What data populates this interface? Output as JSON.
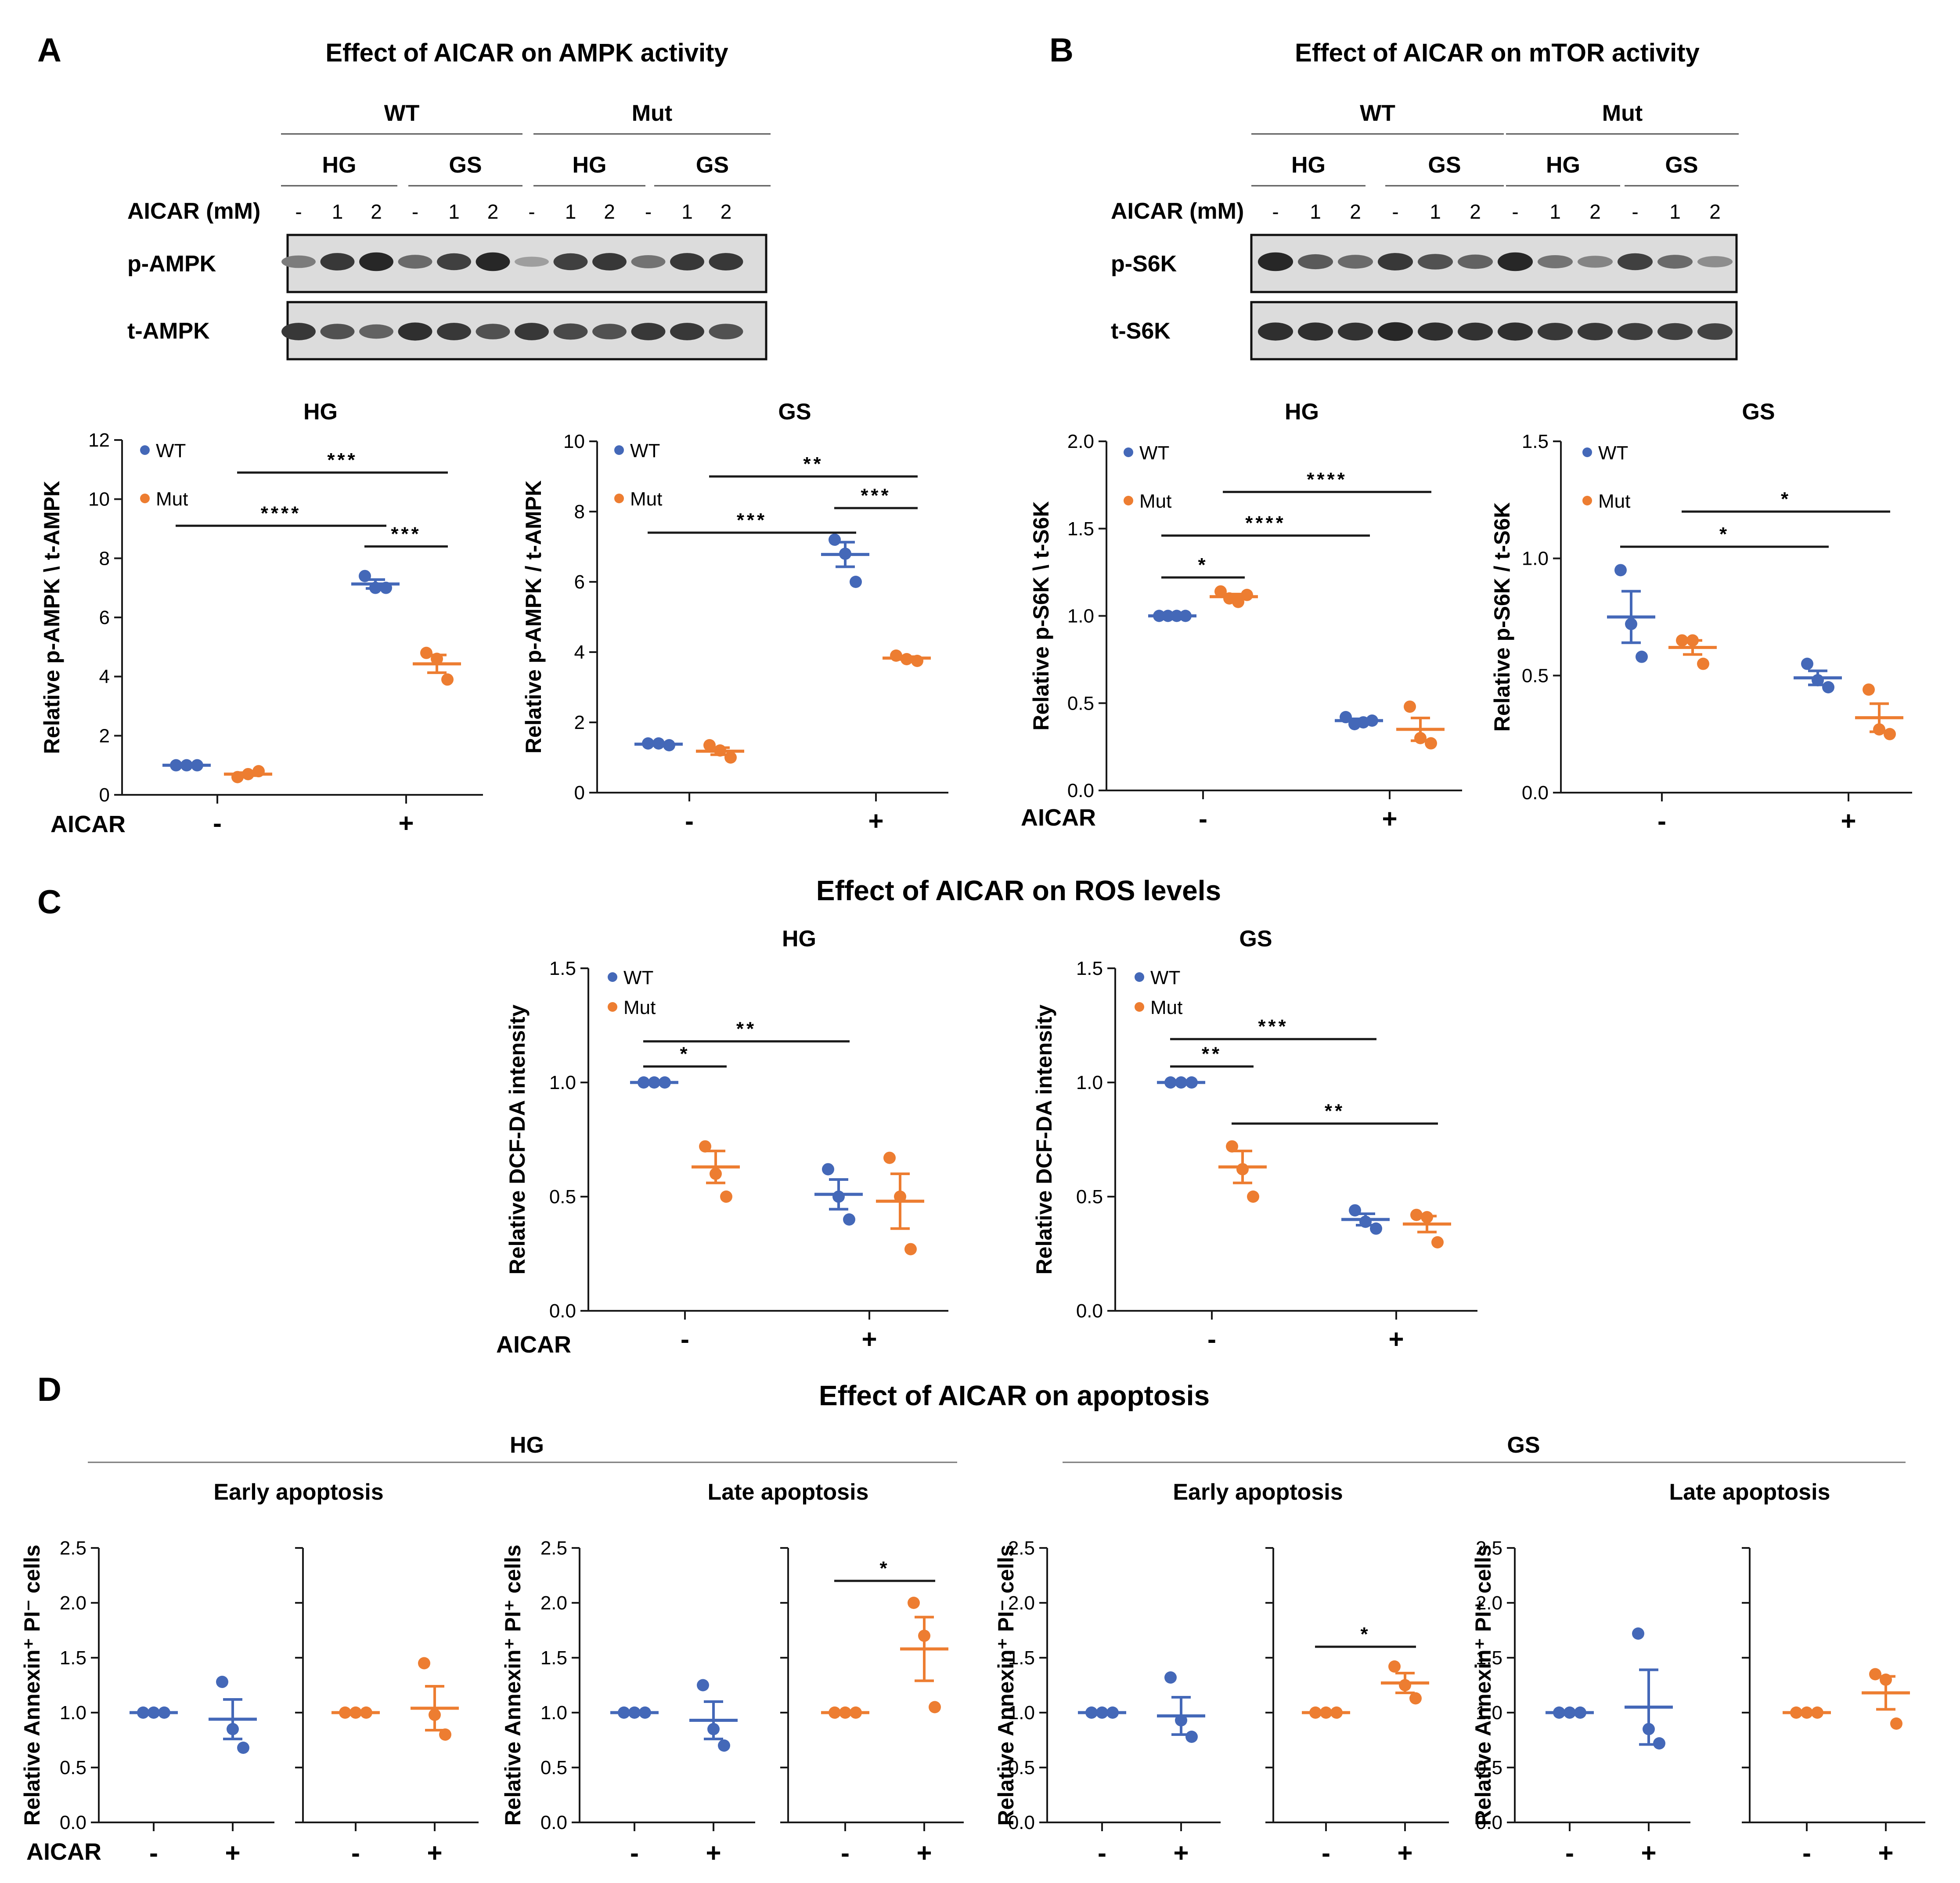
{
  "colors": {
    "wt": "#4468b8",
    "mut": "#ed7d31",
    "axis": "#1a1a1a",
    "text": "#1a1a1a",
    "band": "#2a2a2a"
  },
  "panels": {
    "a": {
      "letter": "A",
      "title": "Effect of AICAR on AMPK activity",
      "group1": "WT",
      "group2": "Mut",
      "sub": [
        "HG",
        "GS",
        "HG",
        "GS"
      ],
      "dose_label": "AICAR (mM)",
      "doses": [
        "-",
        "1",
        "2",
        "-",
        "1",
        "2",
        "-",
        "1",
        "2",
        "-",
        "1",
        "2"
      ],
      "band1": "p-AMPK",
      "band2": "t-AMPK"
    },
    "b": {
      "letter": "B",
      "title": "Effect of AICAR on mTOR activity",
      "group1": "WT",
      "group2": "Mut",
      "sub": [
        "HG",
        "GS",
        "HG",
        "GS"
      ],
      "dose_label": "AICAR (mM)",
      "doses": [
        "-",
        "1",
        "2",
        "-",
        "1",
        "2",
        "-",
        "1",
        "2",
        "-",
        "1",
        "2"
      ],
      "band1": "p-S6K",
      "band2": "t-S6K"
    },
    "c": {
      "letter": "C",
      "title": "Effect of AICAR on ROS levels"
    },
    "d": {
      "letter": "D",
      "title": "Effect of AICAR on apoptosis",
      "hg": "HG",
      "gs": "GS",
      "hg_early": "Early apoptosis",
      "hg_late": "Late apoptosis",
      "gs_early": "Early apoptosis",
      "gs_late": "Late apoptosis"
    }
  },
  "aicar_label": "AICAR",
  "chart_data": [
    {
      "id": "a_hg",
      "type": "scatter",
      "title": "HG",
      "ylabel": "Relative p-AMPK \\ t-AMPK",
      "ylim": [
        0,
        12
      ],
      "yticks": [
        "0",
        "2",
        "4",
        "6",
        "8",
        "10",
        "12"
      ],
      "categories": [
        "-",
        "+"
      ],
      "legend": [
        "WT",
        "Mut"
      ],
      "series": [
        {
          "name": "WT",
          "x": 0,
          "points": [
            1.0,
            1.0,
            1.0
          ],
          "mean": 1.0,
          "sem": 0.02
        },
        {
          "name": "Mut",
          "x": 0,
          "points": [
            0.6,
            0.7,
            0.8
          ],
          "mean": 0.7,
          "sem": 0.05
        },
        {
          "name": "WT",
          "x": 1,
          "points": [
            7.4,
            7.0,
            7.0
          ],
          "mean": 7.13,
          "sem": 0.15
        },
        {
          "name": "Mut",
          "x": 1,
          "points": [
            4.8,
            4.6,
            3.9
          ],
          "mean": 4.43,
          "sem": 0.3
        }
      ],
      "sig": [
        {
          "text": "****",
          "from": [
            0,
            "WT"
          ],
          "to": [
            1,
            "WT"
          ],
          "y": 9.1
        },
        {
          "text": "***",
          "from": [
            1,
            "WT"
          ],
          "to": [
            1,
            "Mut"
          ],
          "y": 8.4
        },
        {
          "text": "***",
          "from": [
            0,
            "Mut"
          ],
          "to": [
            1,
            "Mut"
          ],
          "y": 10.9
        }
      ]
    },
    {
      "id": "a_gs",
      "type": "scatter",
      "title": "GS",
      "ylabel": "Relative p-AMPK / t-AMPK",
      "ylim": [
        0,
        10
      ],
      "yticks": [
        "0",
        "2",
        "4",
        "6",
        "8",
        "10"
      ],
      "categories": [
        "-",
        "+"
      ],
      "legend": [
        "WT",
        "Mut"
      ],
      "series": [
        {
          "name": "WT",
          "x": 0,
          "points": [
            1.4,
            1.4,
            1.35
          ],
          "mean": 1.38,
          "sem": 0.02
        },
        {
          "name": "Mut",
          "x": 0,
          "points": [
            1.35,
            1.2,
            1.0
          ],
          "mean": 1.18,
          "sem": 0.1
        },
        {
          "name": "WT",
          "x": 1,
          "points": [
            7.2,
            6.8,
            6.0
          ],
          "mean": 6.78,
          "sem": 0.35
        },
        {
          "name": "Mut",
          "x": 1,
          "points": [
            3.9,
            3.8,
            3.75
          ],
          "mean": 3.83,
          "sem": 0.04
        }
      ],
      "sig": [
        {
          "text": "***",
          "from": [
            0,
            "WT"
          ],
          "to": [
            1,
            "WT"
          ],
          "y": 7.4
        },
        {
          "text": "***",
          "from": [
            1,
            "WT"
          ],
          "to": [
            1,
            "Mut"
          ],
          "y": 8.1
        },
        {
          "text": "**",
          "from": [
            0,
            "Mut"
          ],
          "to": [
            1,
            "Mut"
          ],
          "y": 9.0
        }
      ]
    },
    {
      "id": "b_hg",
      "type": "scatter",
      "title": "HG",
      "ylabel": "Relative p-S6K \\ t-S6K",
      "ylim": [
        0,
        2.0
      ],
      "yticks": [
        "0.0",
        "0.5",
        "1.0",
        "1.5",
        "2.0"
      ],
      "categories": [
        "-",
        "+"
      ],
      "legend": [
        "WT",
        "Mut"
      ],
      "series": [
        {
          "name": "WT",
          "x": 0,
          "points": [
            1.0,
            1.0,
            1.0,
            1.0
          ],
          "mean": 1.0,
          "sem": 0.005
        },
        {
          "name": "Mut",
          "x": 0,
          "points": [
            1.14,
            1.1,
            1.08,
            1.12
          ],
          "mean": 1.11,
          "sem": 0.015
        },
        {
          "name": "WT",
          "x": 1,
          "points": [
            0.42,
            0.38,
            0.39,
            0.4
          ],
          "mean": 0.4,
          "sem": 0.01
        },
        {
          "name": "Mut",
          "x": 1,
          "points": [
            0.48,
            0.3,
            0.27
          ],
          "mean": 0.35,
          "sem": 0.065
        }
      ],
      "sig": [
        {
          "text": "*",
          "from": [
            0,
            "WT"
          ],
          "to": [
            0,
            "Mut"
          ],
          "y": 1.22
        },
        {
          "text": "****",
          "from": [
            0,
            "WT"
          ],
          "to": [
            1,
            "WT"
          ],
          "y": 1.46
        },
        {
          "text": "****",
          "from": [
            0,
            "Mut"
          ],
          "to": [
            1,
            "Mut"
          ],
          "y": 1.71
        }
      ]
    },
    {
      "id": "b_gs",
      "type": "scatter",
      "title": "GS",
      "ylabel": "Relative p-S6K / t-S6K",
      "ylim": [
        0,
        1.5
      ],
      "yticks": [
        "0.0",
        "0.5",
        "1.0",
        "1.5"
      ],
      "categories": [
        "-",
        "+"
      ],
      "legend": [
        "WT",
        "Mut"
      ],
      "series": [
        {
          "name": "WT",
          "x": 0,
          "points": [
            0.95,
            0.72,
            0.58
          ],
          "mean": 0.75,
          "sem": 0.11
        },
        {
          "name": "Mut",
          "x": 0,
          "points": [
            0.65,
            0.65,
            0.55
          ],
          "mean": 0.62,
          "sem": 0.03
        },
        {
          "name": "WT",
          "x": 1,
          "points": [
            0.55,
            0.48,
            0.45
          ],
          "mean": 0.49,
          "sem": 0.03
        },
        {
          "name": "Mut",
          "x": 1,
          "points": [
            0.44,
            0.27,
            0.25
          ],
          "mean": 0.32,
          "sem": 0.06
        }
      ],
      "sig": [
        {
          "text": "*",
          "from": [
            0,
            "WT"
          ],
          "to": [
            1,
            "WT"
          ],
          "y": 1.05
        },
        {
          "text": "*",
          "from": [
            0,
            "Mut"
          ],
          "to": [
            1,
            "Mut"
          ],
          "y": 1.2
        }
      ]
    },
    {
      "id": "c_hg",
      "type": "scatter",
      "title": "HG",
      "ylabel": "Relative DCF-DA intensity",
      "ylim": [
        0,
        1.5
      ],
      "yticks": [
        "0.0",
        "0.5",
        "1.0",
        "1.5"
      ],
      "categories": [
        "-",
        "+"
      ],
      "legend": [
        "WT",
        "Mut"
      ],
      "series": [
        {
          "name": "WT",
          "x": 0,
          "points": [
            1.0,
            1.0,
            1.0
          ],
          "mean": 1.0,
          "sem": 0.003
        },
        {
          "name": "Mut",
          "x": 0,
          "points": [
            0.72,
            0.6,
            0.5
          ],
          "mean": 0.63,
          "sem": 0.07
        },
        {
          "name": "WT",
          "x": 1,
          "points": [
            0.62,
            0.5,
            0.4
          ],
          "mean": 0.51,
          "sem": 0.065
        },
        {
          "name": "Mut",
          "x": 1,
          "points": [
            0.67,
            0.5,
            0.27
          ],
          "mean": 0.48,
          "sem": 0.12
        }
      ],
      "sig": [
        {
          "text": "*",
          "from": [
            0,
            "WT"
          ],
          "to": [
            0,
            "Mut"
          ],
          "y": 1.07
        },
        {
          "text": "**",
          "from": [
            0,
            "WT"
          ],
          "to": [
            1,
            "WT"
          ],
          "y": 1.18
        }
      ]
    },
    {
      "id": "c_gs",
      "type": "scatter",
      "title": "GS",
      "ylabel": "Relative DCF-DA intensity",
      "ylim": [
        0,
        1.5
      ],
      "yticks": [
        "0.0",
        "0.5",
        "1.0",
        "1.5"
      ],
      "categories": [
        "-",
        "+"
      ],
      "legend": [
        "WT",
        "Mut"
      ],
      "series": [
        {
          "name": "WT",
          "x": 0,
          "points": [
            1.0,
            1.0,
            1.0
          ],
          "mean": 1.0,
          "sem": 0.003
        },
        {
          "name": "Mut",
          "x": 0,
          "points": [
            0.72,
            0.62,
            0.5
          ],
          "mean": 0.63,
          "sem": 0.07
        },
        {
          "name": "WT",
          "x": 1,
          "points": [
            0.44,
            0.39,
            0.36
          ],
          "mean": 0.4,
          "sem": 0.025
        },
        {
          "name": "Mut",
          "x": 1,
          "points": [
            0.42,
            0.41,
            0.3
          ],
          "mean": 0.38,
          "sem": 0.035
        }
      ],
      "sig": [
        {
          "text": "**",
          "from": [
            0,
            "WT"
          ],
          "to": [
            0,
            "Mut"
          ],
          "y": 1.07
        },
        {
          "text": "***",
          "from": [
            0,
            "WT"
          ],
          "to": [
            1,
            "WT"
          ],
          "y": 1.19
        },
        {
          "text": "**",
          "from": [
            0,
            "Mut"
          ],
          "to": [
            1,
            "Mut"
          ],
          "y": 0.82
        }
      ]
    },
    {
      "id": "d_hg_early",
      "type": "scatter",
      "title": "Early apoptosis",
      "ylabel": "Relative Annexin⁺ PI⁻ cells",
      "ylim": [
        0,
        2.5
      ],
      "yticks": [
        "0.0",
        "0.5",
        "1.0",
        "1.5",
        "2.0",
        "2.5"
      ],
      "categories": [
        "-",
        "+",
        "-",
        "+"
      ],
      "series": [
        {
          "name": "WT",
          "x": 0,
          "points": [
            1.0,
            1.0,
            1.0
          ],
          "mean": 1.0,
          "sem": 0.003
        },
        {
          "name": "WT",
          "x": 1,
          "points": [
            1.28,
            0.85,
            0.68
          ],
          "mean": 0.94,
          "sem": 0.18
        },
        {
          "name": "Mut",
          "x": 2,
          "points": [
            1.0,
            1.0,
            1.0
          ],
          "mean": 1.0,
          "sem": 0.003
        },
        {
          "name": "Mut",
          "x": 3,
          "points": [
            1.45,
            0.98,
            0.8
          ],
          "mean": 1.04,
          "sem": 0.2
        }
      ],
      "sig": []
    },
    {
      "id": "d_hg_late",
      "type": "scatter",
      "title": "Late apoptosis",
      "ylabel": "Relative Annexin⁺ PI⁺ cells",
      "ylim": [
        0,
        2.5
      ],
      "yticks": [
        "0.0",
        "0.5",
        "1.0",
        "1.5",
        "2.0",
        "2.5"
      ],
      "categories": [
        "-",
        "+",
        "-",
        "+"
      ],
      "series": [
        {
          "name": "WT",
          "x": 0,
          "points": [
            1.0,
            1.0,
            1.0
          ],
          "mean": 1.0,
          "sem": 0.003
        },
        {
          "name": "WT",
          "x": 1,
          "points": [
            1.25,
            0.85,
            0.7
          ],
          "mean": 0.93,
          "sem": 0.17
        },
        {
          "name": "Mut",
          "x": 2,
          "points": [
            1.0,
            1.0,
            1.0
          ],
          "mean": 1.0,
          "sem": 0.003
        },
        {
          "name": "Mut",
          "x": 3,
          "points": [
            2.0,
            1.7,
            1.05
          ],
          "mean": 1.58,
          "sem": 0.29
        }
      ],
      "sig": [
        {
          "text": "*",
          "from": [
            2,
            "Mut"
          ],
          "to": [
            3,
            "Mut"
          ],
          "y": 2.2
        }
      ]
    },
    {
      "id": "d_gs_early",
      "type": "scatter",
      "title": "Early apoptosis",
      "ylabel": "Relative Annexin⁺ PI⁻ cells",
      "ylim": [
        0,
        2.5
      ],
      "yticks": [
        "0.0",
        "0.5",
        "1.0",
        "1.5",
        "2.0",
        "2.5"
      ],
      "categories": [
        "-",
        "+",
        "-",
        "+"
      ],
      "series": [
        {
          "name": "WT",
          "x": 0,
          "points": [
            1.0,
            1.0,
            1.0
          ],
          "mean": 1.0,
          "sem": 0.003
        },
        {
          "name": "WT",
          "x": 1,
          "points": [
            1.32,
            0.93,
            0.78
          ],
          "mean": 0.97,
          "sem": 0.17
        },
        {
          "name": "Mut",
          "x": 2,
          "points": [
            1.0,
            1.0,
            1.0
          ],
          "mean": 1.0,
          "sem": 0.003
        },
        {
          "name": "Mut",
          "x": 3,
          "points": [
            1.42,
            1.25,
            1.13
          ],
          "mean": 1.27,
          "sem": 0.09
        }
      ],
      "sig": [
        {
          "text": "*",
          "from": [
            2,
            "Mut"
          ],
          "to": [
            3,
            "Mut"
          ],
          "y": 1.6
        }
      ]
    },
    {
      "id": "d_gs_late",
      "type": "scatter",
      "title": "Late apoptosis",
      "ylabel": "Relative Annexin⁺ PI⁺ cells",
      "ylim": [
        0,
        2.5
      ],
      "yticks": [
        "0.0",
        "0.5",
        "1.0",
        "1.5",
        "2.0",
        "2.5"
      ],
      "categories": [
        "-",
        "+",
        "-",
        "+"
      ],
      "series": [
        {
          "name": "WT",
          "x": 0,
          "points": [
            1.0,
            1.0,
            1.0
          ],
          "mean": 1.0,
          "sem": 0.003
        },
        {
          "name": "WT",
          "x": 1,
          "points": [
            1.72,
            0.85,
            0.72
          ],
          "mean": 1.05,
          "sem": 0.34
        },
        {
          "name": "Mut",
          "x": 2,
          "points": [
            1.0,
            1.0,
            1.0
          ],
          "mean": 1.0,
          "sem": 0.003
        },
        {
          "name": "Mut",
          "x": 3,
          "points": [
            1.35,
            1.3,
            0.9
          ],
          "mean": 1.18,
          "sem": 0.15
        }
      ],
      "sig": []
    }
  ]
}
